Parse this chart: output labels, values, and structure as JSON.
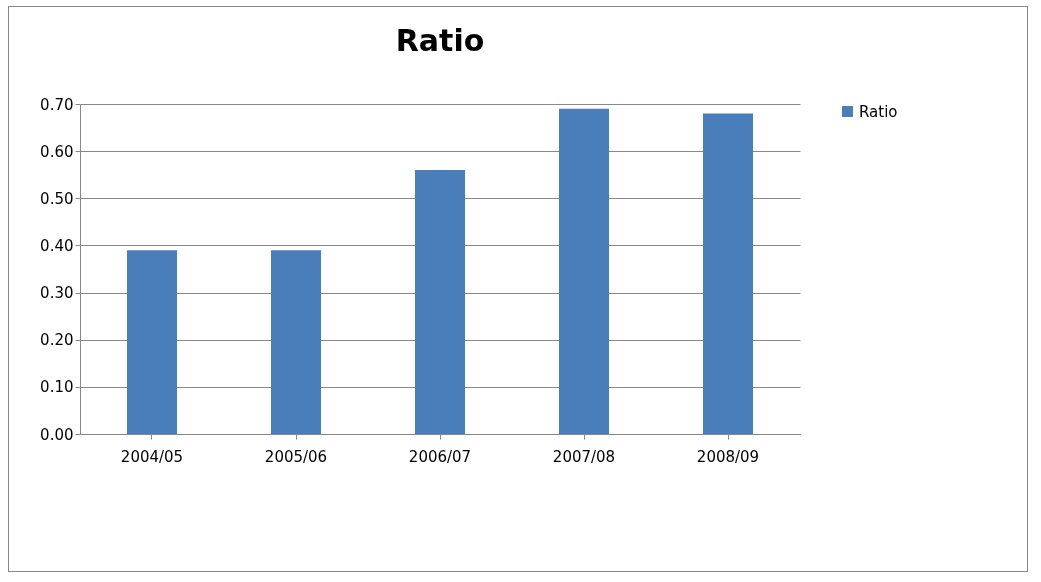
{
  "chart_data": {
    "type": "bar",
    "title": "Ratio",
    "categories": [
      "2004/05",
      "2005/06",
      "2006/07",
      "2007/08",
      "2008/09"
    ],
    "series": [
      {
        "name": "Ratio",
        "color": "#4a7ebb",
        "values": [
          0.39,
          0.39,
          0.56,
          0.69,
          0.68
        ]
      }
    ],
    "ylim": [
      0,
      0.7
    ],
    "yticks": [
      {
        "value": 0,
        "label": "0.00"
      },
      {
        "value": 0.1,
        "label": "0.10"
      },
      {
        "value": 0.2,
        "label": "0.20"
      },
      {
        "value": 0.3,
        "label": "0.30"
      },
      {
        "value": 0.4,
        "label": "0.40"
      },
      {
        "value": 0.5,
        "label": "0.50"
      },
      {
        "value": 0.6,
        "label": "0.60"
      },
      {
        "value": 0.7,
        "label": "0.70"
      }
    ],
    "grid": "y",
    "legend": "right"
  }
}
